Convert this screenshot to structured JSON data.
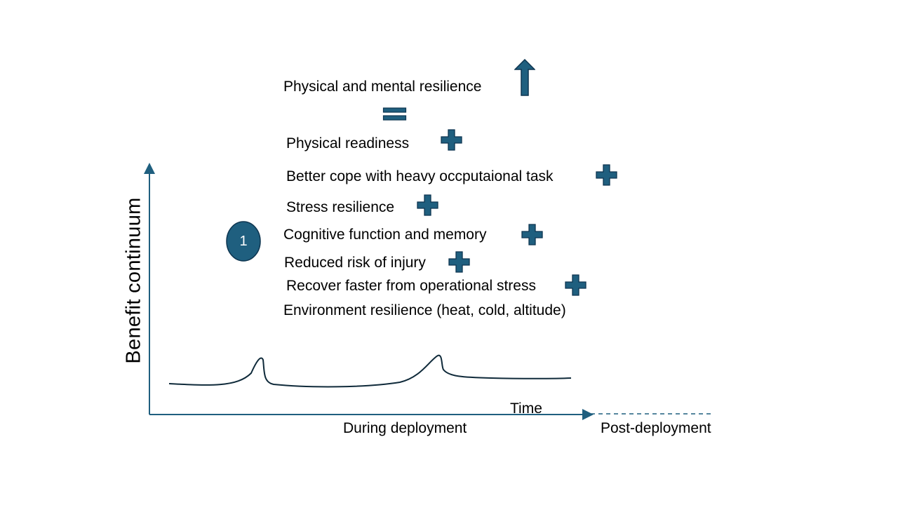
{
  "diagram": {
    "y_axis_label": "Benefit continuum",
    "x_axis_label": "Time",
    "phase_during": "During deployment",
    "phase_post": "Post-deployment",
    "marker_number": "1",
    "result_label": "Physical and mental resilience",
    "components": [
      "Physical readiness",
      "Better cope with heavy  occputaional task",
      "Stress resilience",
      "Cognitive function and memory",
      "Reduced risk of injury",
      "Recover faster from operational stress",
      "Environment resilience (heat, cold,  altitude)"
    ],
    "icons": {
      "result": "up-arrow-icon",
      "equals": "equals-icon",
      "component": "plus-icon"
    },
    "colors": {
      "accent": "#1F5F7F",
      "accent_stroke": "#0E3550",
      "axis": "#1F5F7F",
      "curve": "#0F2A3A"
    }
  }
}
